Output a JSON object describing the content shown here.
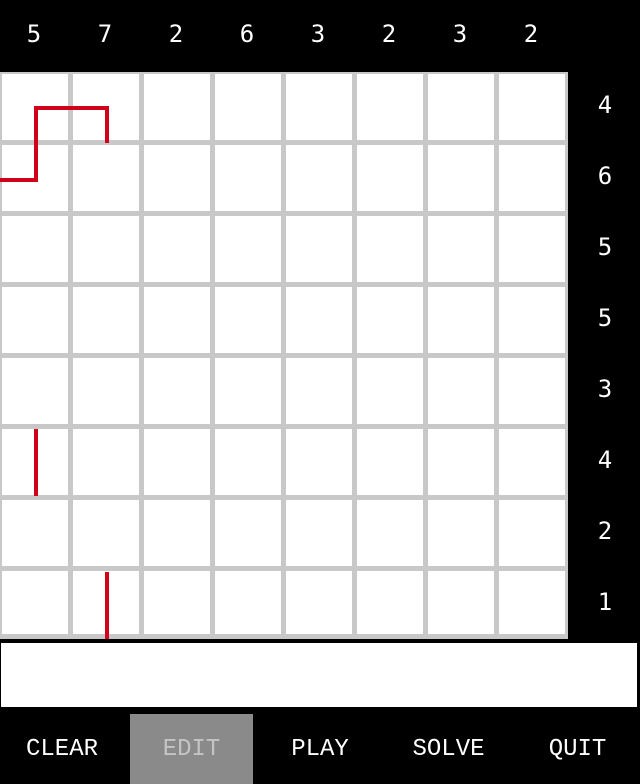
{
  "column_clues": [
    "5",
    "7",
    "2",
    "6",
    "3",
    "2",
    "3",
    "2"
  ],
  "row_clues": [
    "4",
    "6",
    "5",
    "5",
    "3",
    "4",
    "2",
    "1"
  ],
  "status_text": "",
  "buttons": {
    "clear": "CLEAR",
    "edit": "EDIT",
    "play": "PLAY",
    "solve": "SOLVE",
    "quit": "QUIT"
  },
  "colors": {
    "track": "#d0021b",
    "grid": "#c8c8c8",
    "clue_bg": "#000000",
    "disabled_button": "#8a8a8a"
  }
}
